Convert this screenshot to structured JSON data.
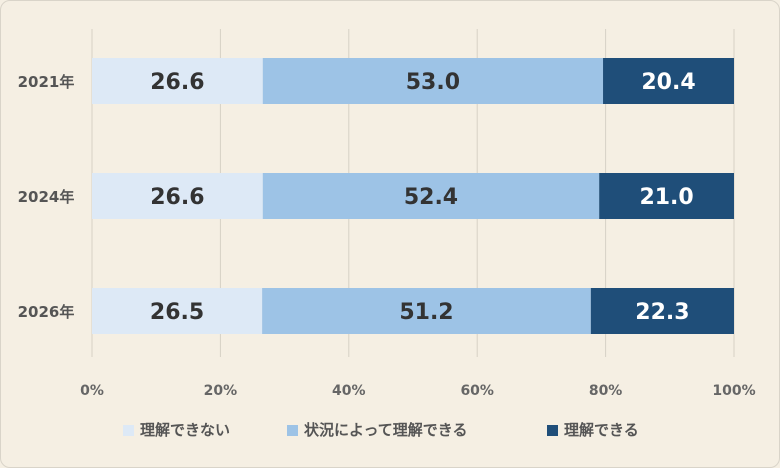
{
  "chart_data": {
    "type": "bar",
    "orientation": "horizontal",
    "stacked": true,
    "normalized_percent": true,
    "categories": [
      "2021年",
      "2024年",
      "2026年"
    ],
    "series": [
      {
        "name": "理解できない",
        "values": [
          26.6,
          26.6,
          26.5
        ],
        "color": "#dde9f6",
        "label_color": "#333333"
      },
      {
        "name": "状況によって理解できる",
        "values": [
          53.0,
          52.4,
          51.2
        ],
        "color": "#9dc3e6",
        "label_color": "#333333"
      },
      {
        "name": "理解できる",
        "values": [
          20.4,
          21.0,
          22.3
        ],
        "color": "#1f4e79",
        "label_color": "#ffffff"
      }
    ],
    "data_labels": [
      [
        "26.6",
        "26.6",
        "26.5"
      ],
      [
        "53.0",
        "52.4",
        "51.2"
      ],
      [
        "20.4",
        "21.0",
        "22.3"
      ]
    ],
    "x_ticks": [
      "0%",
      "20%",
      "40%",
      "60%",
      "80%",
      "100%"
    ],
    "xlim": [
      0,
      100
    ],
    "grid": true,
    "legend_position": "bottom"
  }
}
